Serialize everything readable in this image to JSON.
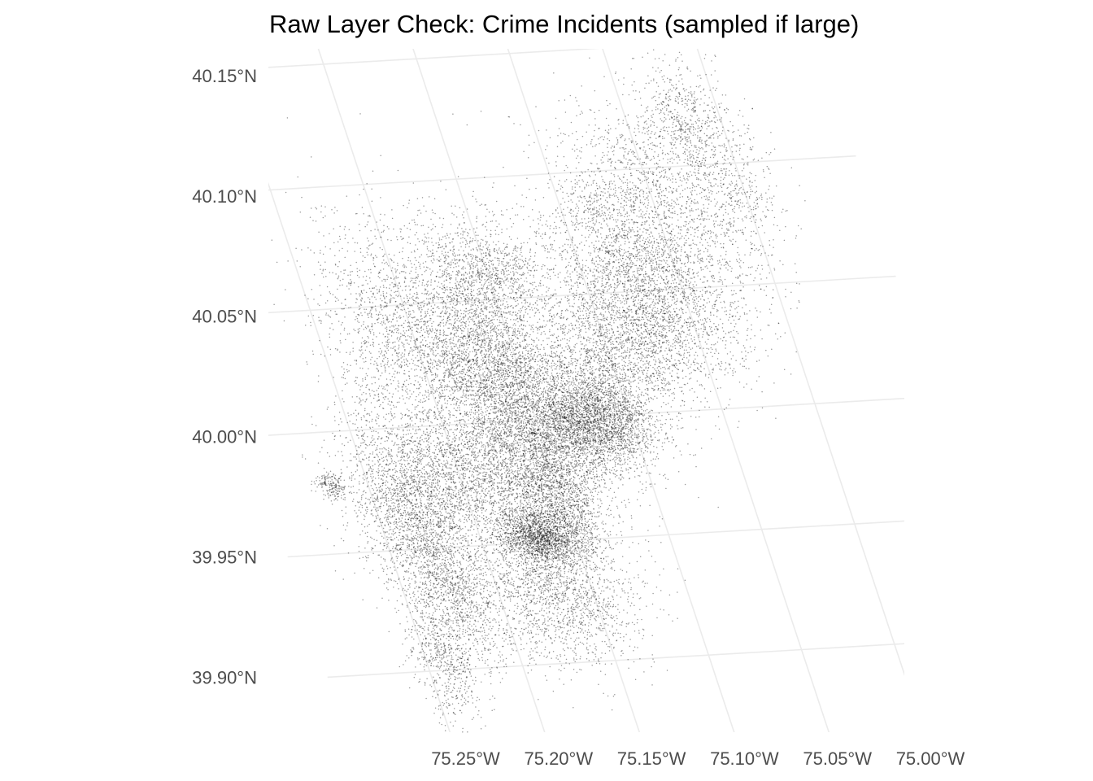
{
  "chart_data": {
    "type": "scatter",
    "title": "Raw Layer Check: Crime Incidents (sampled if large)",
    "subtitle": "",
    "xlabel": "",
    "ylabel": "",
    "projection": "projected map coordinates; graticule lines slightly tilted",
    "grid": true,
    "legend": "none",
    "point_color": "#000000",
    "point_opacity": 0.4,
    "xlim": [
      -75.285,
      -74.955
    ],
    "ylim": [
      39.865,
      40.153
    ],
    "x_ticks": [
      {
        "value": -75.25,
        "label": "75.25°W"
      },
      {
        "value": -75.2,
        "label": "75.20°W"
      },
      {
        "value": -75.15,
        "label": "75.15°W"
      },
      {
        "value": -75.1,
        "label": "75.10°W"
      },
      {
        "value": -75.05,
        "label": "75.05°W"
      },
      {
        "value": -75.0,
        "label": "75.00°W"
      }
    ],
    "y_ticks": [
      {
        "value": 40.15,
        "label": "40.15°N"
      },
      {
        "value": 40.1,
        "label": "40.10°N"
      },
      {
        "value": 40.05,
        "label": "40.05°N"
      },
      {
        "value": 40.0,
        "label": "40.00°N"
      },
      {
        "value": 39.95,
        "label": "39.95°N"
      },
      {
        "value": 39.9,
        "label": "39.90°N"
      }
    ],
    "density_regions": [
      {
        "lon": -75.168,
        "lat": 39.952,
        "spread_lon": 0.011,
        "spread_lat": 0.006,
        "weight": 9
      },
      {
        "lon": -75.165,
        "lat": 39.985,
        "spread_lon": 0.022,
        "spread_lat": 0.018,
        "weight": 14
      },
      {
        "lon": -75.13,
        "lat": 39.997,
        "spread_lon": 0.02,
        "spread_lat": 0.01,
        "weight": 12
      },
      {
        "lon": -75.115,
        "lat": 40.0,
        "spread_lon": 0.014,
        "spread_lat": 0.012,
        "weight": 8
      },
      {
        "lon": -75.2,
        "lat": 39.978,
        "spread_lon": 0.022,
        "spread_lat": 0.015,
        "weight": 7
      },
      {
        "lon": -75.232,
        "lat": 39.968,
        "spread_lon": 0.016,
        "spread_lat": 0.022,
        "weight": 10
      },
      {
        "lon": -75.225,
        "lat": 39.935,
        "spread_lon": 0.012,
        "spread_lat": 0.02,
        "weight": 7
      },
      {
        "lon": -75.242,
        "lat": 39.905,
        "spread_lon": 0.008,
        "spread_lat": 0.014,
        "weight": 3
      },
      {
        "lon": -75.17,
        "lat": 39.928,
        "spread_lon": 0.022,
        "spread_lat": 0.015,
        "weight": 10
      },
      {
        "lon": -75.175,
        "lat": 40.04,
        "spread_lon": 0.024,
        "spread_lat": 0.02,
        "weight": 11
      },
      {
        "lon": -75.16,
        "lat": 40.02,
        "spread_lon": 0.018,
        "spread_lat": 0.012,
        "weight": 8
      },
      {
        "lon": -75.215,
        "lat": 40.04,
        "spread_lon": 0.018,
        "spread_lat": 0.025,
        "weight": 5
      },
      {
        "lon": -75.095,
        "lat": 40.03,
        "spread_lon": 0.022,
        "spread_lat": 0.016,
        "weight": 9
      },
      {
        "lon": -75.06,
        "lat": 40.045,
        "spread_lon": 0.022,
        "spread_lat": 0.018,
        "weight": 9
      },
      {
        "lon": -75.075,
        "lat": 40.07,
        "spread_lon": 0.025,
        "spread_lat": 0.018,
        "weight": 7
      },
      {
        "lon": -75.05,
        "lat": 40.095,
        "spread_lon": 0.025,
        "spread_lat": 0.018,
        "weight": 5
      },
      {
        "lon": -75.01,
        "lat": 40.09,
        "spread_lon": 0.014,
        "spread_lat": 0.022,
        "weight": 4
      },
      {
        "lon": -75.02,
        "lat": 40.12,
        "spread_lon": 0.01,
        "spread_lat": 0.012,
        "weight": 2
      },
      {
        "lon": -75.15,
        "lat": 40.06,
        "spread_lon": 0.015,
        "spread_lat": 0.012,
        "weight": 5
      },
      {
        "lon": -75.15,
        "lat": 39.965,
        "spread_lon": 0.01,
        "spread_lat": 0.012,
        "weight": 5
      },
      {
        "lon": -75.27,
        "lat": 39.978,
        "spread_lon": 0.004,
        "spread_lat": 0.003,
        "weight": 1
      }
    ]
  }
}
